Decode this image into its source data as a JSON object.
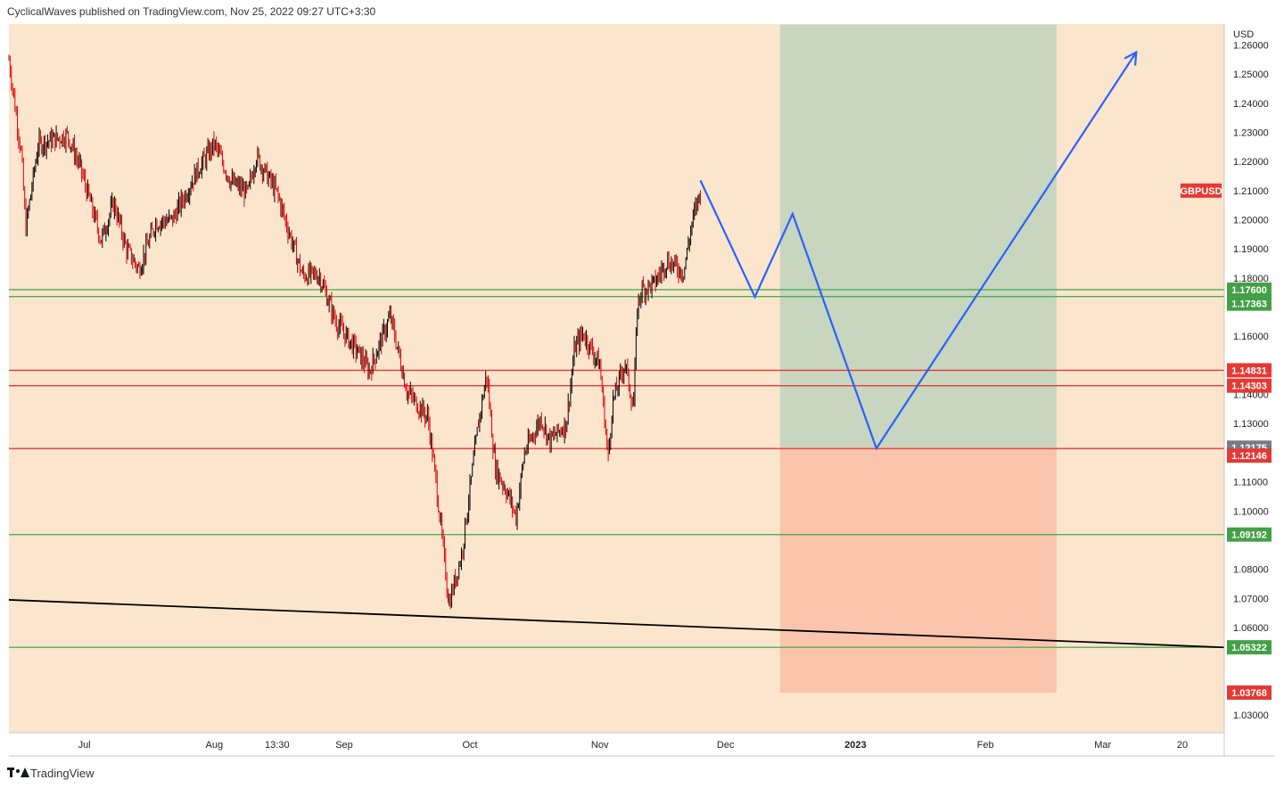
{
  "header": {
    "text": "CyclicalWaves published on TradingView.com, Nov 25, 2022 09:27 UTC+3:30"
  },
  "footer": {
    "brand": "TradingView",
    "logo_icon": "tradingview-logo-icon"
  },
  "colors": {
    "background": "#fce5cd",
    "green_line": "#4caf50",
    "red_line": "#e53935",
    "candle_up": "#000000",
    "candle_down": "#e00000",
    "projection": "#2962ff",
    "trendline": "#000000",
    "profit_zone": "#c8d5bf",
    "loss_zone": "#fac4ad",
    "label_green": "#43a047",
    "label_red": "#e53935",
    "label_gray": "#787b86"
  },
  "chart_data": {
    "type": "candlestick",
    "symbol": "GBPUSD",
    "currency": "USD",
    "ylim": [
      1.023,
      1.267
    ],
    "y_ticks": [
      "1.26000",
      "1.25000",
      "1.24000",
      "1.23000",
      "1.22000",
      "1.21000",
      "1.20000",
      "1.19000",
      "1.18000",
      "1.16000",
      "1.14000",
      "1.13000",
      "1.11000",
      "1.10000",
      "1.08000",
      "1.07000",
      "1.06000",
      "1.03000"
    ],
    "x_labels": [
      "Jul",
      "Aug",
      "13:30",
      "Sep",
      "Oct",
      "Nov",
      "Dec",
      "2023",
      "Feb",
      "Mar",
      "20"
    ],
    "price_anchors": [
      [
        "2022-06-13",
        1.255
      ],
      [
        "2022-06-16",
        1.222
      ],
      [
        "2022-06-17",
        1.197
      ],
      [
        "2022-06-20",
        1.226
      ],
      [
        "2022-06-27",
        1.229
      ],
      [
        "2022-06-30",
        1.218
      ],
      [
        "2022-07-05",
        1.193
      ],
      [
        "2022-07-08",
        1.206
      ],
      [
        "2022-07-11",
        1.19
      ],
      [
        "2022-07-14",
        1.183
      ],
      [
        "2022-07-18",
        1.199
      ],
      [
        "2022-07-22",
        1.2
      ],
      [
        "2022-07-28",
        1.217
      ],
      [
        "2022-08-01",
        1.226
      ],
      [
        "2022-08-05",
        1.213
      ],
      [
        "2022-08-09",
        1.209
      ],
      [
        "2022-08-11",
        1.222
      ],
      [
        "2022-08-16",
        1.209
      ],
      [
        "2022-08-22",
        1.181
      ],
      [
        "2022-08-26",
        1.181
      ],
      [
        "2022-08-30",
        1.165
      ],
      [
        "2022-09-05",
        1.153
      ],
      [
        "2022-09-07",
        1.148
      ],
      [
        "2022-09-12",
        1.167
      ],
      [
        "2022-09-16",
        1.141
      ],
      [
        "2022-09-21",
        1.132
      ],
      [
        "2022-09-23",
        1.109
      ],
      [
        "2022-09-26",
        1.068
      ],
      [
        "2022-09-29",
        1.085
      ],
      [
        "2022-10-03",
        1.13
      ],
      [
        "2022-10-05",
        1.147
      ],
      [
        "2022-10-07",
        1.115
      ],
      [
        "2022-10-10",
        1.106
      ],
      [
        "2022-10-12",
        1.098
      ],
      [
        "2022-10-14",
        1.12
      ],
      [
        "2022-10-18",
        1.132
      ],
      [
        "2022-10-20",
        1.124
      ],
      [
        "2022-10-24",
        1.13
      ],
      [
        "2022-10-26",
        1.156
      ],
      [
        "2022-10-28",
        1.161
      ],
      [
        "2022-11-01",
        1.15
      ],
      [
        "2022-11-03",
        1.118
      ],
      [
        "2022-11-04",
        1.137
      ],
      [
        "2022-11-07",
        1.151
      ],
      [
        "2022-11-09",
        1.135
      ],
      [
        "2022-11-10",
        1.171
      ],
      [
        "2022-11-11",
        1.176
      ],
      [
        "2022-11-14",
        1.178
      ],
      [
        "2022-11-17",
        1.186
      ],
      [
        "2022-11-21",
        1.182
      ],
      [
        "2022-11-23",
        1.199
      ],
      [
        "2022-11-25",
        1.21
      ]
    ],
    "candle_count_estimate": 570,
    "horizontal_levels": [
      {
        "price": 1.176,
        "label": "1.17600",
        "color": "green"
      },
      {
        "price": 1.17363,
        "label": "1.17363",
        "color": "green"
      },
      {
        "price": 1.14831,
        "label": "1.14831",
        "color": "red"
      },
      {
        "price": 1.14303,
        "label": "1.14303",
        "color": "red"
      },
      {
        "price": 1.12175,
        "label": "1.12175",
        "color": "gray"
      },
      {
        "price": 1.12146,
        "label": "1.12146",
        "color": "red"
      },
      {
        "price": 1.09192,
        "label": "1.09192",
        "color": "green"
      },
      {
        "price": 1.05322,
        "label": "1.05322",
        "color": "green"
      }
    ],
    "symbol_label": {
      "text": "GBPUSD",
      "price": 1.21
    },
    "stop_label": {
      "text": "1.03768",
      "price": 1.03768
    },
    "position_zone": {
      "from": "2022-12-14",
      "to": "2023-02-18",
      "entry": 1.12175,
      "target": 1.267,
      "stop": 1.03768
    },
    "projection_path": [
      [
        "2022-11-25",
        1.2135
      ],
      [
        "2022-12-08",
        1.1735
      ],
      [
        "2022-12-17",
        1.202
      ],
      [
        "2023-01-06",
        1.1215
      ],
      [
        "2023-03-09",
        1.2575
      ]
    ],
    "trendline": [
      [
        "2022-06-13",
        1.0695
      ],
      [
        "2023-03-29",
        1.0532
      ]
    ]
  }
}
